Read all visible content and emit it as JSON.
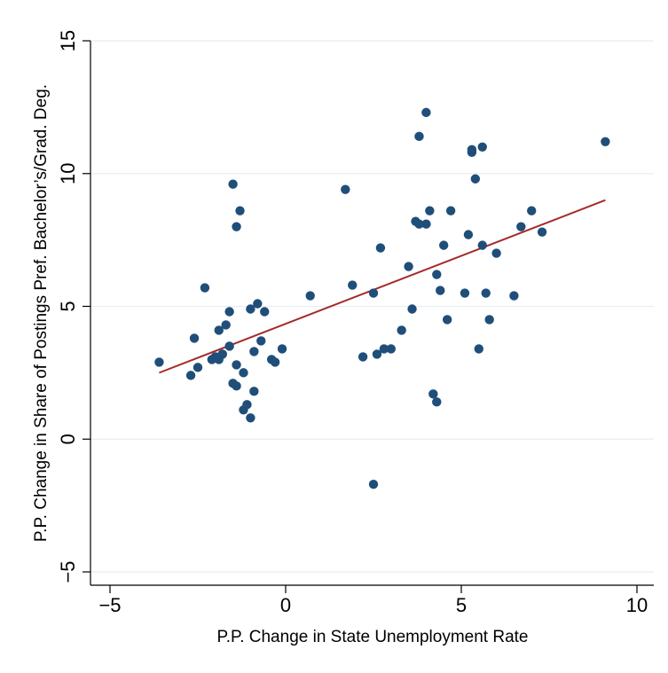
{
  "chart_data": {
    "type": "scatter",
    "title": "",
    "xlabel": "P.P. Change in State Unemployment Rate",
    "ylabel": "P.P. Change in Share of Postings Pref. Bachelor’s/Grad. Deg.",
    "xlim": [
      -5,
      10
    ],
    "ylim": [
      -5,
      15
    ],
    "xticks": [
      -5,
      0,
      5,
      10
    ],
    "xtick_labels": [
      "−5",
      "0",
      "5",
      "10"
    ],
    "yticks": [
      -5,
      0,
      5,
      10,
      15
    ],
    "ytick_labels": [
      "−5",
      "0",
      "5",
      "10",
      "15"
    ],
    "grid": "horizontal",
    "legend": "none",
    "colors": {
      "points": "#1f4e79",
      "fit_line": "#a52a2a",
      "grid": "#e8eef3"
    },
    "series": [
      {
        "x": [
          -3.6,
          -2.7,
          -2.6,
          -2.5,
          -2.3,
          -2.1,
          -2.0,
          -1.9,
          -1.9,
          -1.8,
          -1.8,
          -1.7,
          -1.6,
          -1.6,
          -1.5,
          -1.5,
          -1.4,
          -1.4,
          -1.4,
          -1.3,
          -1.2,
          -1.2,
          -1.1,
          -1.0,
          -1.0,
          -0.9,
          -0.9,
          -0.8,
          -0.7,
          -0.6,
          -0.4,
          -0.3,
          -0.1,
          0.7,
          1.7,
          1.9,
          2.2,
          2.5,
          2.5,
          2.6,
          2.7,
          2.8,
          3.0,
          3.3,
          3.5,
          3.6,
          3.7,
          3.8,
          3.8,
          4.0,
          4.0,
          4.1,
          4.2,
          4.3,
          4.3,
          4.4,
          4.5,
          4.6,
          4.7,
          5.1,
          5.2,
          5.3,
          5.3,
          5.4,
          5.5,
          5.6,
          5.6,
          5.7,
          5.8,
          6.0,
          6.5,
          6.7,
          7.0,
          7.3,
          9.1
        ],
        "y": [
          2.9,
          2.4,
          3.8,
          2.7,
          5.7,
          3.0,
          3.1,
          4.1,
          3.0,
          3.2,
          3.2,
          4.3,
          4.8,
          3.5,
          9.6,
          2.1,
          8.0,
          2.8,
          2.0,
          8.6,
          2.5,
          1.1,
          1.3,
          4.9,
          0.8,
          3.3,
          1.8,
          5.1,
          3.7,
          4.8,
          3.0,
          2.9,
          3.4,
          5.4,
          9.4,
          5.8,
          3.1,
          5.5,
          -1.7,
          3.2,
          7.2,
          3.4,
          3.4,
          4.1,
          6.5,
          4.9,
          8.2,
          11.4,
          8.1,
          12.3,
          8.1,
          8.6,
          1.7,
          1.4,
          6.2,
          5.6,
          7.3,
          4.5,
          8.6,
          5.5,
          7.7,
          10.8,
          10.9,
          9.8,
          3.4,
          11.0,
          7.3,
          5.5,
          4.5,
          7.0,
          5.4,
          8.0,
          8.6,
          7.8,
          11.2
        ]
      }
    ],
    "fit_line": {
      "x": [
        -3.6,
        9.1
      ],
      "y": [
        2.5,
        9.0
      ]
    }
  }
}
